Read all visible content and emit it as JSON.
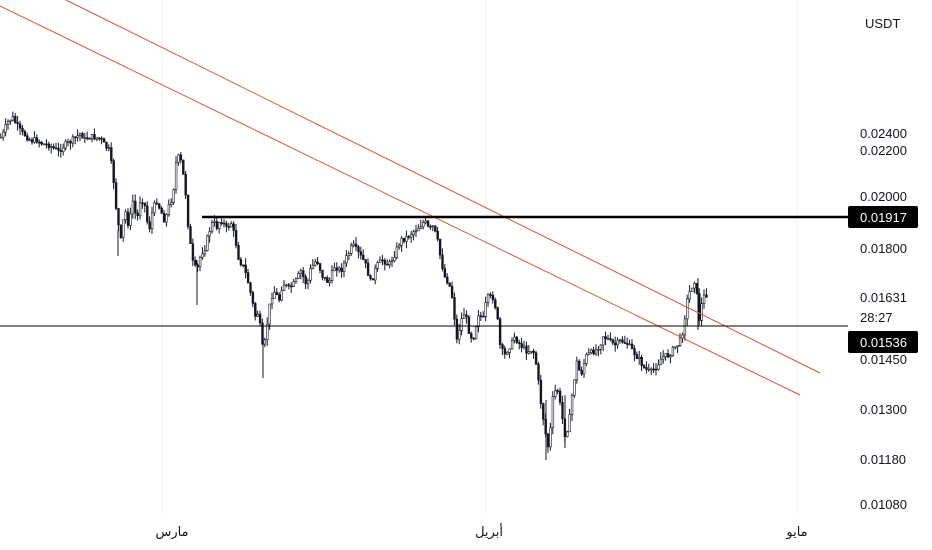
{
  "currency": "USDT",
  "colors": {
    "candle": "#131722",
    "trendline": "#d4573b",
    "grid": "#eef0f3",
    "level_line": "#000000",
    "badge_bg": "#000000",
    "badge_text": "#ffffff"
  },
  "chart_data": {
    "type": "candlestick",
    "y_ticks": [
      "0.02400",
      "0.02200",
      "0.02000",
      "0.01800",
      "0.01450",
      "0.01300",
      "0.01180",
      "0.01080"
    ],
    "x_ticks": [
      "مارس",
      "أبريل",
      "مايو"
    ],
    "resistance_level": "0.01917",
    "current_price": "0.01536",
    "last_value": "0.01631",
    "countdown": "28:27",
    "close_path": [
      [
        0,
        0.0235
      ],
      [
        4,
        0.0242
      ],
      [
        8,
        0.0246
      ],
      [
        12,
        0.0247
      ],
      [
        18,
        0.0242
      ],
      [
        24,
        0.0238
      ],
      [
        30,
        0.0231
      ],
      [
        36,
        0.0232
      ],
      [
        42,
        0.0227
      ],
      [
        48,
        0.0226
      ],
      [
        54,
        0.0221
      ],
      [
        58,
        0.0219
      ],
      [
        64,
        0.0226
      ],
      [
        70,
        0.023
      ],
      [
        76,
        0.0236
      ],
      [
        80,
        0.024
      ],
      [
        84,
        0.0232
      ],
      [
        88,
        0.0236
      ],
      [
        94,
        0.0235
      ],
      [
        100,
        0.0233
      ],
      [
        104,
        0.0225
      ],
      [
        108,
        0.022
      ],
      [
        112,
        0.021
      ],
      [
        116,
        0.0192
      ],
      [
        120,
        0.0183
      ],
      [
        124,
        0.0195
      ],
      [
        128,
        0.0188
      ],
      [
        132,
        0.0198
      ],
      [
        136,
        0.019
      ],
      [
        140,
        0.02
      ],
      [
        144,
        0.0196
      ],
      [
        148,
        0.0186
      ],
      [
        152,
        0.0195
      ],
      [
        156,
        0.0198
      ],
      [
        160,
        0.0194
      ],
      [
        164,
        0.019
      ],
      [
        168,
        0.0196
      ],
      [
        172,
        0.02
      ],
      [
        176,
        0.0218
      ],
      [
        180,
        0.0215
      ],
      [
        184,
        0.0205
      ],
      [
        188,
        0.0185
      ],
      [
        192,
        0.0175
      ],
      [
        196,
        0.0172
      ],
      [
        200,
        0.0178
      ],
      [
        204,
        0.018
      ],
      [
        208,
        0.0186
      ],
      [
        212,
        0.019
      ],
      [
        216,
        0.0188
      ],
      [
        220,
        0.0191
      ],
      [
        226,
        0.0187
      ],
      [
        230,
        0.019
      ],
      [
        234,
        0.0184
      ],
      [
        238,
        0.0176
      ],
      [
        242,
        0.0174
      ],
      [
        246,
        0.017
      ],
      [
        250,
        0.0164
      ],
      [
        254,
        0.0159
      ],
      [
        258,
        0.016
      ],
      [
        262,
        0.015
      ],
      [
        266,
        0.0157
      ],
      [
        270,
        0.0163
      ],
      [
        274,
        0.0165
      ],
      [
        278,
        0.0162
      ],
      [
        282,
        0.0168
      ],
      [
        288,
        0.0166
      ],
      [
        294,
        0.0168
      ],
      [
        300,
        0.0172
      ],
      [
        306,
        0.0167
      ],
      [
        310,
        0.0173
      ],
      [
        316,
        0.0176
      ],
      [
        322,
        0.017
      ],
      [
        328,
        0.0168
      ],
      [
        334,
        0.0174
      ],
      [
        340,
        0.0172
      ],
      [
        346,
        0.0177
      ],
      [
        352,
        0.0181
      ],
      [
        358,
        0.0178
      ],
      [
        364,
        0.0175
      ],
      [
        370,
        0.0168
      ],
      [
        376,
        0.0174
      ],
      [
        382,
        0.0176
      ],
      [
        388,
        0.0174
      ],
      [
        394,
        0.0178
      ],
      [
        400,
        0.0183
      ],
      [
        406,
        0.0184
      ],
      [
        412,
        0.0186
      ],
      [
        418,
        0.0188
      ],
      [
        424,
        0.019
      ],
      [
        428,
        0.0187
      ],
      [
        432,
        0.0188
      ],
      [
        436,
        0.0184
      ],
      [
        440,
        0.0176
      ],
      [
        444,
        0.017
      ],
      [
        448,
        0.0168
      ],
      [
        452,
        0.0162
      ],
      [
        456,
        0.0154
      ],
      [
        460,
        0.0158
      ],
      [
        464,
        0.016
      ],
      [
        468,
        0.0156
      ],
      [
        472,
        0.0154
      ],
      [
        478,
        0.016
      ],
      [
        482,
        0.0158
      ],
      [
        486,
        0.0163
      ],
      [
        492,
        0.0163
      ],
      [
        496,
        0.016
      ],
      [
        500,
        0.015
      ],
      [
        504,
        0.0147
      ],
      [
        508,
        0.0151
      ],
      [
        514,
        0.0155
      ],
      [
        520,
        0.0152
      ],
      [
        526,
        0.0149
      ],
      [
        532,
        0.015
      ],
      [
        536,
        0.0142
      ],
      [
        540,
        0.0132
      ],
      [
        544,
        0.0125
      ],
      [
        548,
        0.012
      ],
      [
        552,
        0.0133
      ],
      [
        556,
        0.0137
      ],
      [
        560,
        0.013
      ],
      [
        564,
        0.0124
      ],
      [
        568,
        0.0126
      ],
      [
        572,
        0.0136
      ],
      [
        576,
        0.0144
      ],
      [
        580,
        0.014
      ],
      [
        586,
        0.0147
      ],
      [
        590,
        0.0148
      ],
      [
        596,
        0.015
      ],
      [
        602,
        0.0155
      ],
      [
        608,
        0.0154
      ],
      [
        614,
        0.0152
      ],
      [
        620,
        0.0154
      ],
      [
        626,
        0.0153
      ],
      [
        632,
        0.0149
      ],
      [
        638,
        0.0145
      ],
      [
        644,
        0.0142
      ],
      [
        650,
        0.0141
      ],
      [
        656,
        0.0143
      ],
      [
        662,
        0.0146
      ],
      [
        668,
        0.0147
      ],
      [
        674,
        0.0151
      ],
      [
        678,
        0.0153
      ],
      [
        682,
        0.0156
      ],
      [
        686,
        0.0162
      ],
      [
        690,
        0.0166
      ],
      [
        694,
        0.0169
      ],
      [
        698,
        0.0158
      ],
      [
        702,
        0.0163
      ],
      [
        706,
        0.0164
      ]
    ]
  }
}
